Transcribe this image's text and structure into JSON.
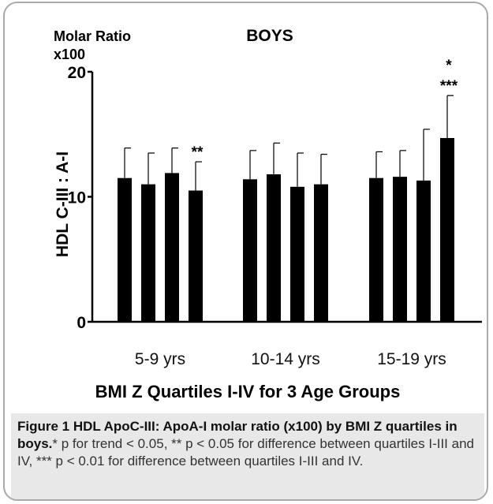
{
  "chart_data": {
    "type": "bar",
    "title": "BOYS",
    "ylabel": "HDL C-III : A-I",
    "yunit": "Molar Ratio x100",
    "xlabel": "BMI Z Quartiles I-IV for 3 Age Groups",
    "ylim": [
      0,
      20
    ],
    "yticks": [
      0,
      10,
      20
    ],
    "categories": [
      "5-9 yrs",
      "10-14 yrs",
      "15-19 yrs"
    ],
    "series": [
      {
        "values": [
          11.5,
          11.4,
          11.5
        ],
        "errors": [
          2.4,
          2.3,
          2.1
        ]
      },
      {
        "values": [
          11.0,
          11.8,
          11.6
        ],
        "errors": [
          2.5,
          2.5,
          2.1
        ]
      },
      {
        "values": [
          11.9,
          10.8,
          11.3
        ],
        "errors": [
          2.0,
          2.7,
          4.1
        ]
      },
      {
        "values": [
          10.5,
          11.0,
          14.7
        ],
        "errors": [
          2.3,
          2.4,
          3.4
        ]
      }
    ],
    "annotations": [
      {
        "category": "5-9 yrs",
        "series": 4,
        "text": "**"
      },
      {
        "category": "15-19 yrs",
        "series": 4,
        "text": "*"
      },
      {
        "category": "15-19 yrs",
        "series": 4,
        "text": "***"
      }
    ],
    "bar_color": "#000000",
    "grid": false,
    "legend": "none"
  },
  "caption": {
    "label": "Figure 1",
    "bold_text": "HDL ApoC-III: ApoA-I molar ratio (x100) by BMI Z quartiles in boys.",
    "text": "* p for trend < 0.05, ** p < 0.05 for difference between quartiles I-III and IV, *** p < 0.01 for difference between quartiles I-III and IV."
  }
}
